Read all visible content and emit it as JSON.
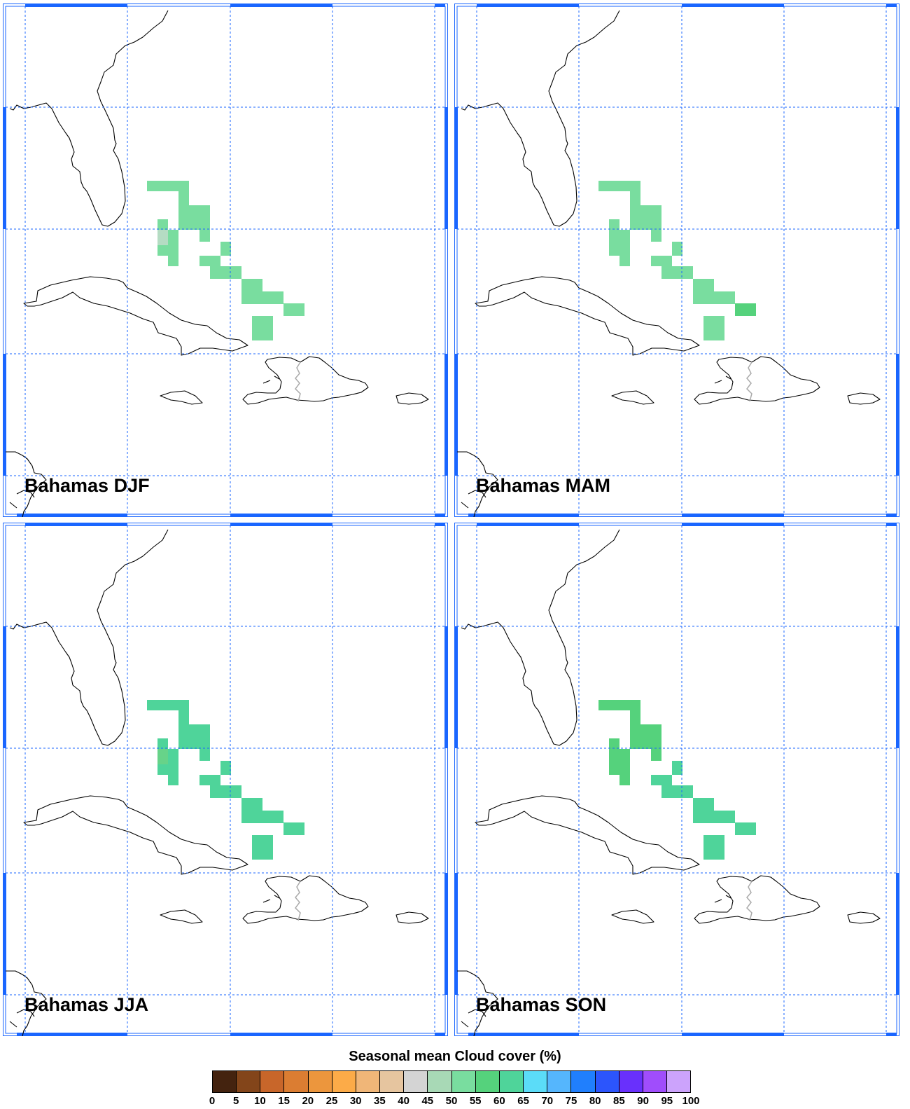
{
  "panels": [
    {
      "label": "Bahamas DJF",
      "colors": {
        "main": "#79dd9f",
        "a": "#79dd9f",
        "b": "#79dd9f",
        "c": "#79dd9f",
        "pale": "#b5dcc3",
        "accent": "#79dd9f"
      }
    },
    {
      "label": "Bahamas MAM",
      "colors": {
        "main": "#79dd9f",
        "a": "#79dd9f",
        "b": "#79dd9f",
        "c": "#79dd9f",
        "pale": "#79dd9f",
        "accent": "#55d27c"
      }
    },
    {
      "label": "Bahamas JJA",
      "colors": {
        "main": "#4fd49a",
        "a": "#4fd49a",
        "b": "#4fd49a",
        "c": "#4fd49a",
        "pale": "#67d389",
        "accent": "#4fd49a"
      }
    },
    {
      "label": "Bahamas SON",
      "colors": {
        "main": "#55d27c",
        "a": "#55d27c",
        "b": "#4fd49a",
        "c": "#4fd49a",
        "pale": "#55d27c",
        "accent": "#4fd49a"
      }
    }
  ],
  "colorbar": {
    "title": "Seasonal mean Cloud cover (%)",
    "ticks": [
      "0",
      "5",
      "10",
      "15",
      "20",
      "25",
      "30",
      "35",
      "40",
      "45",
      "50",
      "55",
      "60",
      "65",
      "70",
      "75",
      "80",
      "85",
      "90",
      "95",
      "100"
    ],
    "colors": [
      "#44230f",
      "#83451a",
      "#c8662a",
      "#db7d32",
      "#ec963d",
      "#fcab48",
      "#f0b678",
      "#e6c59f",
      "#d4d4d4",
      "#a8d9b6",
      "#79dd9f",
      "#55d27c",
      "#4fd49a",
      "#5bdcf8",
      "#55b6fd",
      "#207ffd",
      "#2c55fc",
      "#6930fc",
      "#a04dfc",
      "#cca3fc"
    ]
  },
  "map": {
    "gridline_color": "#1a66ff",
    "frame_color": "#1a66ff",
    "coast_color": "#000000",
    "border_color": "#aaaaaa"
  }
}
